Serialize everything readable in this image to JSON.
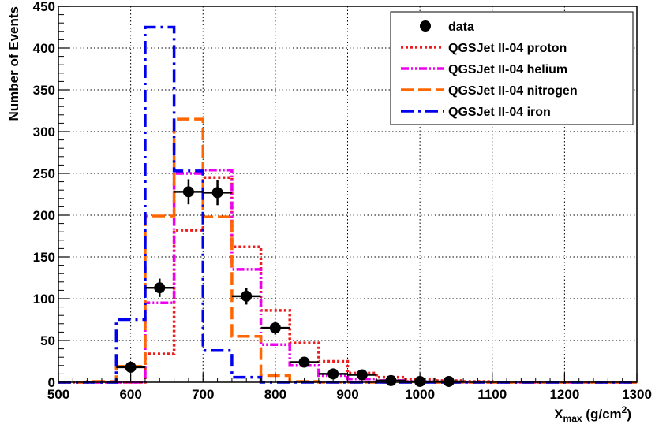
{
  "chart_data": {
    "type": "line",
    "title": "",
    "xlabel": "X",
    "xlabel_sub": "max",
    "xlabel_unit_open": " (g/cm",
    "xlabel_unit_sup": "2",
    "xlabel_unit_close": ")",
    "ylabel": "Number of Events",
    "xlim": [
      500,
      1300
    ],
    "ylim": [
      0,
      450
    ],
    "x_ticks": [
      "500",
      "600",
      "700",
      "800",
      "900",
      "1000",
      "1100",
      "1200",
      "1300"
    ],
    "y_ticks": [
      "0",
      "50",
      "100",
      "150",
      "200",
      "250",
      "300",
      "350",
      "400",
      "450"
    ],
    "grid": true,
    "legend_position": "top-right",
    "bin_edges": [
      500,
      540,
      580,
      620,
      660,
      700,
      740,
      780,
      820,
      860,
      900,
      940,
      980,
      1020,
      1060,
      1100,
      1140,
      1180,
      1220,
      1260,
      1300
    ],
    "data_points": {
      "name": "data",
      "x": [
        600,
        640,
        680,
        720,
        760,
        800,
        840,
        880,
        920,
        960,
        1000,
        1040
      ],
      "y": [
        18,
        113,
        228,
        227,
        103,
        65,
        24,
        10,
        9,
        2,
        1,
        1
      ],
      "yerr": [
        5,
        11,
        15,
        15,
        10,
        8,
        5,
        3,
        3,
        1.5,
        1,
        1
      ]
    },
    "series": [
      {
        "name": "QGSJet II-04 proton",
        "color": "#ee1c1c",
        "dash": "dot",
        "values": [
          0,
          0,
          0,
          34,
          182,
          245,
          162,
          86,
          47,
          25,
          11,
          6,
          4,
          2,
          1,
          0,
          0,
          0,
          0,
          0
        ]
      },
      {
        "name": "QGSJet II-04 helium",
        "color": "#ee00ee",
        "dash": "dashdotdot",
        "values": [
          0,
          0,
          0,
          95,
          250,
          254,
          135,
          45,
          20,
          8,
          4,
          2,
          1,
          0,
          0,
          0,
          0,
          0,
          0,
          0
        ]
      },
      {
        "name": "QGSJet II-04 nitrogen",
        "color": "#ff6600",
        "dash": "longdash",
        "values": [
          0,
          1,
          19,
          199,
          315,
          198,
          55,
          8,
          1,
          0,
          0,
          0,
          0,
          0,
          0,
          0,
          0,
          0,
          0,
          0
        ]
      },
      {
        "name": "QGSJet II-04 iron",
        "color": "#0000ee",
        "dash": "dashdot",
        "values": [
          0,
          0,
          75,
          425,
          253,
          38,
          6,
          0,
          0,
          0,
          0,
          0,
          0,
          0,
          0,
          0,
          0,
          0,
          0,
          0
        ]
      }
    ]
  }
}
